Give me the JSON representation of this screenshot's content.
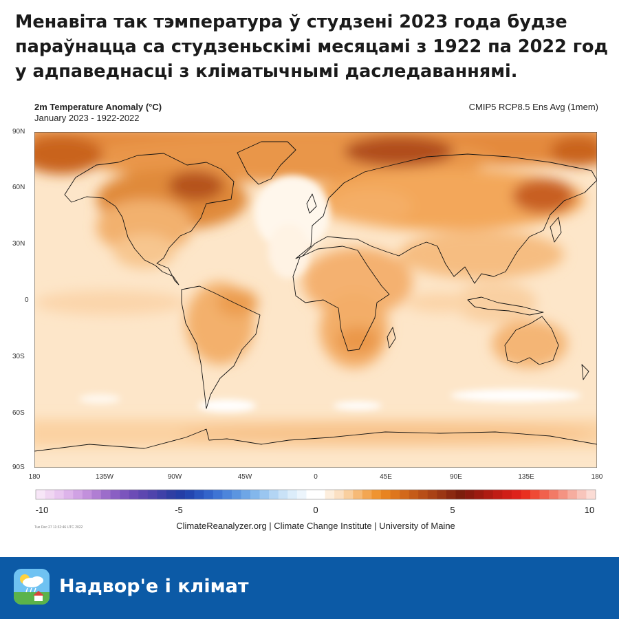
{
  "headline": {
    "line1": "Менавіта так тэмпература ў студзені 2023 года будзе",
    "line2": "параўнацца са студзеньскімі месяцамі з 1922 па 2022 год",
    "line3": "у адпаведнасці з кліматычнымі даследаваннямі."
  },
  "map": {
    "title": "2m Temperature Anomaly (°C)",
    "subtitle": "January 2023 - 1922-2022",
    "model": "CMIP5 RCP8.5 Ens Avg (1mem)",
    "lat_labels": [
      "90N",
      "60N",
      "30N",
      "0",
      "30S",
      "60S",
      "90S"
    ],
    "lon_labels": [
      "180",
      "135W",
      "90W",
      "45W",
      "0",
      "45E",
      "90E",
      "135E",
      "180"
    ],
    "colors": {
      "ocean_base": "#fde6c9",
      "warm_light": "#fcd3a3",
      "warm_mid": "#f4a556",
      "warm_strong": "#dd7a2a",
      "warm_max": "#b3501c",
      "neutral": "#ffffff",
      "coast": "#111111"
    }
  },
  "scale": {
    "labels": [
      "-10",
      "-5",
      "0",
      "5",
      "10"
    ],
    "colors": [
      "#f7e6f7",
      "#f0d6f2",
      "#e8c6ef",
      "#ddb4ea",
      "#d0a2e4",
      "#c290dc",
      "#b07ed3",
      "#9c6dca",
      "#8a5fc3",
      "#7b55bd",
      "#6c4cb6",
      "#5d47b0",
      "#4f44ac",
      "#3f41a8",
      "#2f3ea3",
      "#243ea6",
      "#2346b0",
      "#2a55be",
      "#3364ca",
      "#3f74d4",
      "#4d85db",
      "#5c95e0",
      "#6ea6e6",
      "#83b7ec",
      "#9ac6f0",
      "#b3d5f4",
      "#c9e2f7",
      "#dcedfa",
      "#ecf5fc",
      "#ffffff",
      "#ffffff",
      "#fdeedd",
      "#fbe0c3",
      "#f9cf9f",
      "#f6ba77",
      "#f3a652",
      "#ef9431",
      "#e88420",
      "#de761d",
      "#d2681b",
      "#c55b19",
      "#b84e17",
      "#aa4215",
      "#9b3613",
      "#8b2910",
      "#7c1e0c",
      "#8a1a0e",
      "#9c1a10",
      "#ae1b12",
      "#c01c14",
      "#d01e17",
      "#de221b",
      "#e9301f",
      "#ef4a35",
      "#f1614c",
      "#f27a66",
      "#f49382",
      "#f6ad9f",
      "#f8c5bb",
      "#fbdcd5"
    ]
  },
  "credit": "ClimateReanalyzer.org | Climate Change Institute | University of Maine",
  "stamp": "Tue Dec 27 11:32:46 UTC 2022",
  "footer": {
    "title": "Надвор'е і клімат",
    "icon": "weather-app-icon"
  }
}
